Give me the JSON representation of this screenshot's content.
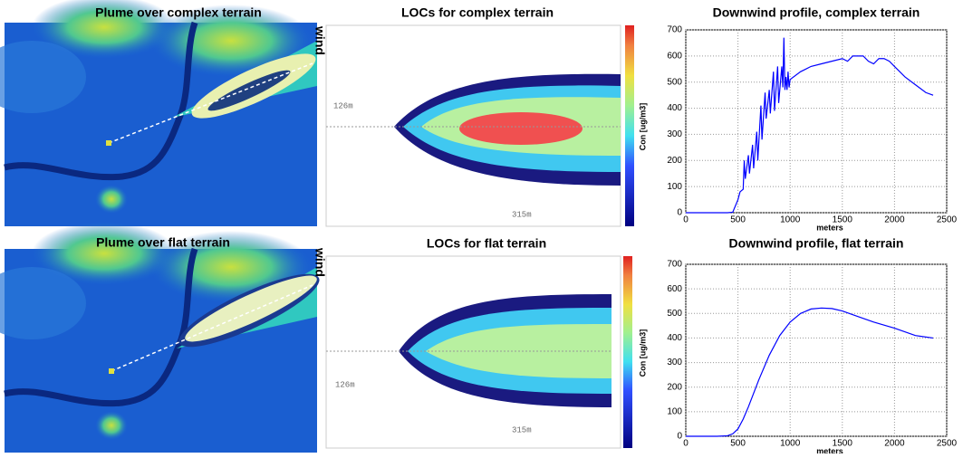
{
  "panels": [
    {
      "title": "Plume over complex terrain",
      "label": "wind"
    },
    {
      "title": "LOCs for complex terrain",
      "colorbar_label": "Con [ug/m3]",
      "annotations": [
        "126m",
        "315m"
      ]
    },
    {
      "title": "Plume over flat terrain",
      "label": "wind"
    },
    {
      "title": "LOCs for flat terrain",
      "colorbar_label": "Con [ug/m3]",
      "annotations": [
        "126m",
        "315m"
      ]
    }
  ],
  "chart_data": [
    {
      "type": "line",
      "title": "Downwind profile, complex terrain",
      "xlabel": "meters",
      "x": [
        0,
        400,
        450,
        500,
        520,
        550,
        560,
        570,
        600,
        610,
        640,
        650,
        680,
        690,
        720,
        730,
        760,
        770,
        800,
        810,
        840,
        850,
        880,
        890,
        920,
        930,
        940,
        950,
        960,
        970,
        980,
        990,
        1000,
        1100,
        1200,
        1300,
        1400,
        1500,
        1550,
        1600,
        1650,
        1700,
        1750,
        1800,
        1850,
        1900,
        1950,
        2000,
        2100,
        2200,
        2300,
        2370
      ],
      "series": [
        {
          "color": "#0000ff",
          "values": [
            0,
            0,
            2,
            50,
            80,
            90,
            200,
            130,
            220,
            150,
            260,
            170,
            310,
            200,
            410,
            280,
            460,
            360,
            470,
            380,
            540,
            390,
            560,
            420,
            560,
            480,
            670,
            470,
            520,
            470,
            540,
            480,
            510,
            540,
            560,
            570,
            580,
            590,
            580,
            600,
            600,
            600,
            580,
            570,
            590,
            590,
            580,
            560,
            520,
            490,
            460,
            450
          ]
        }
      ],
      "xlim": [
        0,
        2500
      ],
      "xticks": [
        0,
        500,
        1000,
        1500,
        2000,
        2500
      ],
      "ylim": [
        0,
        700
      ],
      "yticks": [
        0,
        100,
        200,
        300,
        400,
        500,
        600,
        700
      ],
      "grid": true
    },
    {
      "type": "line",
      "title": "Downwind profile, flat terrain",
      "xlabel": "meters",
      "x": [
        0,
        300,
        400,
        450,
        500,
        550,
        600,
        700,
        800,
        900,
        1000,
        1100,
        1200,
        1300,
        1400,
        1500,
        1600,
        1800,
        2000,
        2200,
        2370
      ],
      "series": [
        {
          "color": "#0000ff",
          "values": [
            0,
            0,
            2,
            10,
            30,
            70,
            120,
            230,
            330,
            410,
            465,
            500,
            518,
            522,
            520,
            510,
            495,
            465,
            440,
            410,
            400
          ]
        }
      ],
      "xlim": [
        0,
        2500
      ],
      "xticks": [
        0,
        500,
        1000,
        1500,
        2000,
        2500
      ],
      "ylim": [
        0,
        700
      ],
      "yticks": [
        0,
        100,
        200,
        300,
        400,
        500,
        600,
        700
      ],
      "grid": true
    }
  ]
}
